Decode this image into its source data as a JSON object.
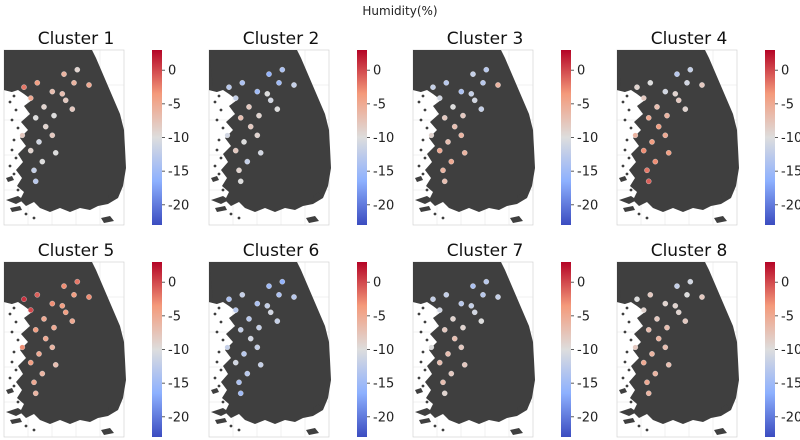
{
  "figure": {
    "title": "Humidity(%)"
  },
  "chart_data": {
    "type": "scatter",
    "title": "Humidity(%)",
    "colormap": "coolwarm",
    "colorbar": {
      "vmin": -23,
      "vmax": 3,
      "ticks": [
        0,
        -5,
        -10,
        -15,
        -20
      ],
      "tick_labels": [
        "0",
        "-5",
        "-10",
        "-15",
        "-20"
      ],
      "colors": [
        "#3b4cc0",
        "#8db0fe",
        "#dddddd",
        "#f49a7b",
        "#b40426"
      ]
    },
    "map_color": "#3f3f3f",
    "panels": [
      {
        "title": "Cluster 1",
        "points": [
          {
            "lon": 126.6,
            "lat": 37.45,
            "value": -2
          },
          {
            "lon": 126.8,
            "lat": 37.2,
            "value": -5
          },
          {
            "lon": 127.0,
            "lat": 37.55,
            "value": -4
          },
          {
            "lon": 127.45,
            "lat": 37.35,
            "value": -7
          },
          {
            "lon": 127.8,
            "lat": 37.75,
            "value": -6
          },
          {
            "lon": 128.1,
            "lat": 37.55,
            "value": -6
          },
          {
            "lon": 128.55,
            "lat": 37.5,
            "value": -5
          },
          {
            "lon": 127.75,
            "lat": 37.3,
            "value": -7
          },
          {
            "lon": 127.2,
            "lat": 37.0,
            "value": -9
          },
          {
            "lon": 127.5,
            "lat": 36.8,
            "value": -10
          },
          {
            "lon": 127.85,
            "lat": 37.15,
            "value": -8
          },
          {
            "lon": 128.05,
            "lat": 36.95,
            "value": -8
          },
          {
            "lon": 126.95,
            "lat": 36.75,
            "value": -10
          },
          {
            "lon": 127.25,
            "lat": 36.55,
            "value": -9
          },
          {
            "lon": 127.45,
            "lat": 36.35,
            "value": -8
          },
          {
            "lon": 127.05,
            "lat": 36.2,
            "value": -11
          },
          {
            "lon": 126.8,
            "lat": 36.0,
            "value": -9
          },
          {
            "lon": 127.55,
            "lat": 35.95,
            "value": -10
          },
          {
            "lon": 127.15,
            "lat": 35.75,
            "value": -10
          },
          {
            "lon": 126.9,
            "lat": 35.55,
            "value": -12
          },
          {
            "lon": 126.55,
            "lat": 36.35,
            "value": -8
          },
          {
            "lon": 126.95,
            "lat": 35.3,
            "value": -13
          },
          {
            "lon": 128.2,
            "lat": 37.85,
            "value": -9
          }
        ]
      },
      {
        "title": "Cluster 2",
        "points": [
          {
            "lon": 126.6,
            "lat": 37.45,
            "value": -13
          },
          {
            "lon": 126.8,
            "lat": 37.2,
            "value": -12
          },
          {
            "lon": 127.0,
            "lat": 37.55,
            "value": -14
          },
          {
            "lon": 127.45,
            "lat": 37.35,
            "value": -15
          },
          {
            "lon": 127.8,
            "lat": 37.75,
            "value": -16
          },
          {
            "lon": 128.1,
            "lat": 37.55,
            "value": -15
          },
          {
            "lon": 128.55,
            "lat": 37.5,
            "value": -12
          },
          {
            "lon": 127.75,
            "lat": 37.3,
            "value": -10
          },
          {
            "lon": 127.2,
            "lat": 37.0,
            "value": -8
          },
          {
            "lon": 127.5,
            "lat": 36.8,
            "value": -9
          },
          {
            "lon": 127.85,
            "lat": 37.15,
            "value": -11
          },
          {
            "lon": 128.05,
            "lat": 36.95,
            "value": -10
          },
          {
            "lon": 126.95,
            "lat": 36.75,
            "value": -7
          },
          {
            "lon": 127.25,
            "lat": 36.55,
            "value": -8
          },
          {
            "lon": 127.45,
            "lat": 36.35,
            "value": -9
          },
          {
            "lon": 127.05,
            "lat": 36.2,
            "value": -10
          },
          {
            "lon": 126.8,
            "lat": 36.0,
            "value": -8
          },
          {
            "lon": 127.55,
            "lat": 35.95,
            "value": -11
          },
          {
            "lon": 127.15,
            "lat": 35.75,
            "value": -12
          },
          {
            "lon": 126.9,
            "lat": 35.55,
            "value": -9
          },
          {
            "lon": 126.55,
            "lat": 36.35,
            "value": -11
          },
          {
            "lon": 126.95,
            "lat": 35.3,
            "value": -10
          },
          {
            "lon": 128.2,
            "lat": 37.85,
            "value": -14
          }
        ]
      },
      {
        "title": "Cluster 3",
        "points": [
          {
            "lon": 126.6,
            "lat": 37.45,
            "value": -12
          },
          {
            "lon": 126.8,
            "lat": 37.2,
            "value": -11
          },
          {
            "lon": 127.0,
            "lat": 37.55,
            "value": -13
          },
          {
            "lon": 127.45,
            "lat": 37.35,
            "value": -14
          },
          {
            "lon": 127.8,
            "lat": 37.75,
            "value": -12
          },
          {
            "lon": 128.1,
            "lat": 37.55,
            "value": -13
          },
          {
            "lon": 128.55,
            "lat": 37.5,
            "value": -6
          },
          {
            "lon": 127.75,
            "lat": 37.3,
            "value": -12
          },
          {
            "lon": 127.2,
            "lat": 37.0,
            "value": -10
          },
          {
            "lon": 127.5,
            "lat": 36.8,
            "value": -8
          },
          {
            "lon": 127.85,
            "lat": 37.15,
            "value": -11
          },
          {
            "lon": 128.05,
            "lat": 36.95,
            "value": -12
          },
          {
            "lon": 126.95,
            "lat": 36.75,
            "value": -8
          },
          {
            "lon": 127.25,
            "lat": 36.55,
            "value": -7
          },
          {
            "lon": 127.45,
            "lat": 36.35,
            "value": -6
          },
          {
            "lon": 127.05,
            "lat": 36.2,
            "value": -7
          },
          {
            "lon": 126.8,
            "lat": 36.0,
            "value": -5
          },
          {
            "lon": 127.55,
            "lat": 35.95,
            "value": -6
          },
          {
            "lon": 127.15,
            "lat": 35.75,
            "value": -5
          },
          {
            "lon": 126.9,
            "lat": 35.55,
            "value": -6
          },
          {
            "lon": 126.55,
            "lat": 36.35,
            "value": -9
          },
          {
            "lon": 126.95,
            "lat": 35.3,
            "value": -7
          },
          {
            "lon": 128.2,
            "lat": 37.85,
            "value": -13
          }
        ]
      },
      {
        "title": "Cluster 4",
        "points": [
          {
            "lon": 126.6,
            "lat": 37.45,
            "value": -9
          },
          {
            "lon": 126.8,
            "lat": 37.2,
            "value": -8
          },
          {
            "lon": 127.0,
            "lat": 37.55,
            "value": -10
          },
          {
            "lon": 127.45,
            "lat": 37.35,
            "value": -11
          },
          {
            "lon": 127.8,
            "lat": 37.75,
            "value": -13
          },
          {
            "lon": 128.1,
            "lat": 37.55,
            "value": -11
          },
          {
            "lon": 128.55,
            "lat": 37.5,
            "value": -8
          },
          {
            "lon": 127.75,
            "lat": 37.3,
            "value": -9
          },
          {
            "lon": 127.2,
            "lat": 37.0,
            "value": -7
          },
          {
            "lon": 127.5,
            "lat": 36.8,
            "value": -6
          },
          {
            "lon": 127.85,
            "lat": 37.15,
            "value": -8
          },
          {
            "lon": 128.05,
            "lat": 36.95,
            "value": -9
          },
          {
            "lon": 126.95,
            "lat": 36.75,
            "value": -5
          },
          {
            "lon": 127.25,
            "lat": 36.55,
            "value": -4
          },
          {
            "lon": 127.45,
            "lat": 36.35,
            "value": -5
          },
          {
            "lon": 127.05,
            "lat": 36.2,
            "value": -4
          },
          {
            "lon": 126.8,
            "lat": 36.0,
            "value": -3
          },
          {
            "lon": 127.55,
            "lat": 35.95,
            "value": -4
          },
          {
            "lon": 127.15,
            "lat": 35.75,
            "value": -3
          },
          {
            "lon": 126.9,
            "lat": 35.55,
            "value": -2
          },
          {
            "lon": 126.55,
            "lat": 36.35,
            "value": -6
          },
          {
            "lon": 126.95,
            "lat": 35.3,
            "value": -1
          },
          {
            "lon": 128.2,
            "lat": 37.85,
            "value": -12
          }
        ]
      },
      {
        "title": "Cluster 5",
        "points": [
          {
            "lon": 126.6,
            "lat": 37.45,
            "value": 1
          },
          {
            "lon": 126.8,
            "lat": 37.2,
            "value": 0
          },
          {
            "lon": 127.0,
            "lat": 37.55,
            "value": -1
          },
          {
            "lon": 127.45,
            "lat": 37.35,
            "value": -3
          },
          {
            "lon": 127.8,
            "lat": 37.75,
            "value": -3
          },
          {
            "lon": 128.1,
            "lat": 37.55,
            "value": -4
          },
          {
            "lon": 128.55,
            "lat": 37.5,
            "value": -3
          },
          {
            "lon": 127.75,
            "lat": 37.3,
            "value": -4
          },
          {
            "lon": 127.2,
            "lat": 37.0,
            "value": -5
          },
          {
            "lon": 127.5,
            "lat": 36.8,
            "value": -5
          },
          {
            "lon": 127.85,
            "lat": 37.15,
            "value": -4
          },
          {
            "lon": 128.05,
            "lat": 36.95,
            "value": -5
          },
          {
            "lon": 126.95,
            "lat": 36.75,
            "value": -4
          },
          {
            "lon": 127.25,
            "lat": 36.55,
            "value": -5
          },
          {
            "lon": 127.45,
            "lat": 36.35,
            "value": -6
          },
          {
            "lon": 127.05,
            "lat": 36.2,
            "value": -5
          },
          {
            "lon": 126.8,
            "lat": 36.0,
            "value": -4
          },
          {
            "lon": 127.55,
            "lat": 35.95,
            "value": -7
          },
          {
            "lon": 127.15,
            "lat": 35.75,
            "value": -6
          },
          {
            "lon": 126.9,
            "lat": 35.55,
            "value": -5
          },
          {
            "lon": 126.55,
            "lat": 36.35,
            "value": -3
          },
          {
            "lon": 126.95,
            "lat": 35.3,
            "value": -6
          },
          {
            "lon": 128.2,
            "lat": 37.85,
            "value": -2
          }
        ]
      },
      {
        "title": "Cluster 6",
        "points": [
          {
            "lon": 126.6,
            "lat": 37.45,
            "value": -14
          },
          {
            "lon": 126.8,
            "lat": 37.2,
            "value": -13
          },
          {
            "lon": 127.0,
            "lat": 37.55,
            "value": -12
          },
          {
            "lon": 127.45,
            "lat": 37.35,
            "value": -14
          },
          {
            "lon": 127.8,
            "lat": 37.75,
            "value": -15
          },
          {
            "lon": 128.1,
            "lat": 37.55,
            "value": -14
          },
          {
            "lon": 128.55,
            "lat": 37.5,
            "value": -13
          },
          {
            "lon": 127.75,
            "lat": 37.3,
            "value": -12
          },
          {
            "lon": 127.2,
            "lat": 37.0,
            "value": -13
          },
          {
            "lon": 127.5,
            "lat": 36.8,
            "value": -12
          },
          {
            "lon": 127.85,
            "lat": 37.15,
            "value": -11
          },
          {
            "lon": 128.05,
            "lat": 36.95,
            "value": -12
          },
          {
            "lon": 126.95,
            "lat": 36.75,
            "value": -12
          },
          {
            "lon": 127.25,
            "lat": 36.55,
            "value": -11
          },
          {
            "lon": 127.45,
            "lat": 36.35,
            "value": -12
          },
          {
            "lon": 127.05,
            "lat": 36.2,
            "value": -13
          },
          {
            "lon": 126.8,
            "lat": 36.0,
            "value": -11
          },
          {
            "lon": 127.55,
            "lat": 35.95,
            "value": -12
          },
          {
            "lon": 127.15,
            "lat": 35.75,
            "value": -13
          },
          {
            "lon": 126.9,
            "lat": 35.55,
            "value": -14
          },
          {
            "lon": 126.55,
            "lat": 36.35,
            "value": -12
          },
          {
            "lon": 126.95,
            "lat": 35.3,
            "value": -15
          },
          {
            "lon": 128.2,
            "lat": 37.85,
            "value": -16
          }
        ]
      },
      {
        "title": "Cluster 7",
        "points": [
          {
            "lon": 126.6,
            "lat": 37.45,
            "value": -12
          },
          {
            "lon": 126.8,
            "lat": 37.2,
            "value": -11
          },
          {
            "lon": 127.0,
            "lat": 37.55,
            "value": -12
          },
          {
            "lon": 127.45,
            "lat": 37.35,
            "value": -13
          },
          {
            "lon": 127.8,
            "lat": 37.75,
            "value": -14
          },
          {
            "lon": 128.1,
            "lat": 37.55,
            "value": -13
          },
          {
            "lon": 128.55,
            "lat": 37.5,
            "value": -12
          },
          {
            "lon": 127.75,
            "lat": 37.3,
            "value": -12
          },
          {
            "lon": 127.2,
            "lat": 37.0,
            "value": -9
          },
          {
            "lon": 127.5,
            "lat": 36.8,
            "value": -9
          },
          {
            "lon": 127.85,
            "lat": 37.15,
            "value": -11
          },
          {
            "lon": 128.05,
            "lat": 36.95,
            "value": -10
          },
          {
            "lon": 126.95,
            "lat": 36.75,
            "value": -8
          },
          {
            "lon": 127.25,
            "lat": 36.55,
            "value": -7
          },
          {
            "lon": 127.45,
            "lat": 36.35,
            "value": -8
          },
          {
            "lon": 127.05,
            "lat": 36.2,
            "value": -7
          },
          {
            "lon": 126.8,
            "lat": 36.0,
            "value": -7
          },
          {
            "lon": 127.55,
            "lat": 35.95,
            "value": -8
          },
          {
            "lon": 127.15,
            "lat": 35.75,
            "value": -8
          },
          {
            "lon": 126.9,
            "lat": 35.55,
            "value": -7
          },
          {
            "lon": 126.55,
            "lat": 36.35,
            "value": -10
          },
          {
            "lon": 126.95,
            "lat": 35.3,
            "value": -9
          },
          {
            "lon": 128.2,
            "lat": 37.85,
            "value": -13
          }
        ]
      },
      {
        "title": "Cluster 8",
        "points": [
          {
            "lon": 126.6,
            "lat": 37.45,
            "value": -10
          },
          {
            "lon": 126.8,
            "lat": 37.2,
            "value": -9
          },
          {
            "lon": 127.0,
            "lat": 37.55,
            "value": -8
          },
          {
            "lon": 127.45,
            "lat": 37.35,
            "value": -9
          },
          {
            "lon": 127.8,
            "lat": 37.75,
            "value": -12
          },
          {
            "lon": 128.1,
            "lat": 37.55,
            "value": -10
          },
          {
            "lon": 128.55,
            "lat": 37.5,
            "value": -8
          },
          {
            "lon": 127.75,
            "lat": 37.3,
            "value": -9
          },
          {
            "lon": 127.2,
            "lat": 37.0,
            "value": -8
          },
          {
            "lon": 127.5,
            "lat": 36.8,
            "value": -7
          },
          {
            "lon": 127.85,
            "lat": 37.15,
            "value": -9
          },
          {
            "lon": 128.05,
            "lat": 36.95,
            "value": -8
          },
          {
            "lon": 126.95,
            "lat": 36.75,
            "value": -7
          },
          {
            "lon": 127.25,
            "lat": 36.55,
            "value": -6
          },
          {
            "lon": 127.45,
            "lat": 36.35,
            "value": -7
          },
          {
            "lon": 127.05,
            "lat": 36.2,
            "value": -6
          },
          {
            "lon": 126.8,
            "lat": 36.0,
            "value": -5
          },
          {
            "lon": 127.55,
            "lat": 35.95,
            "value": -7
          },
          {
            "lon": 127.15,
            "lat": 35.75,
            "value": -6
          },
          {
            "lon": 126.9,
            "lat": 35.55,
            "value": -5
          },
          {
            "lon": 126.55,
            "lat": 36.35,
            "value": -8
          },
          {
            "lon": 126.95,
            "lat": 35.3,
            "value": -6
          },
          {
            "lon": 128.2,
            "lat": 37.85,
            "value": -11
          }
        ]
      }
    ]
  }
}
